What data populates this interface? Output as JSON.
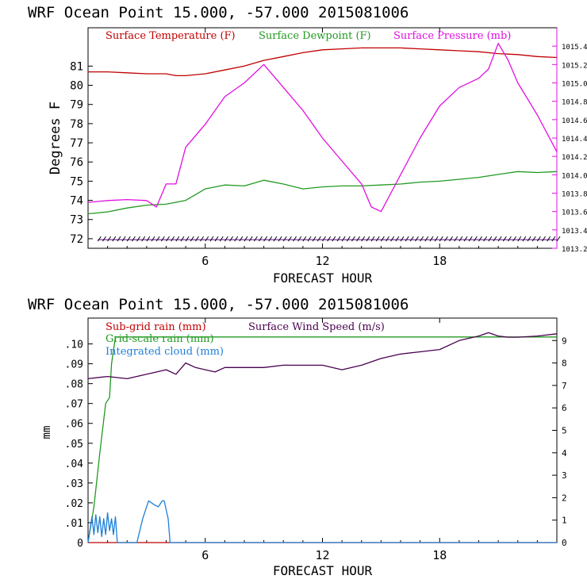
{
  "chart_data": [
    {
      "type": "line",
      "title": "WRF   Ocean Point   15.000, -57.000  2015081006",
      "xlabel": "FORECAST HOUR",
      "ylabel": "Degrees F",
      "xlim": [
        0,
        24
      ],
      "ylim": [
        71.5,
        83.0
      ],
      "y2lim": [
        1013.2,
        1015.6
      ],
      "x_ticks": [
        6,
        12,
        18
      ],
      "x_tick_labels": [
        "6",
        "12",
        "18"
      ],
      "y_ticks": [
        72,
        73,
        74,
        75,
        76,
        77,
        78,
        79,
        80,
        81
      ],
      "y_tick_labels": [
        "72",
        "73",
        "74",
        "75",
        "76",
        "77",
        "78",
        "79",
        "80",
        "81"
      ],
      "y2_ticks": [
        1013.2,
        1013.4,
        1013.6,
        1013.8,
        1014.0,
        1014.2,
        1014.4,
        1014.6,
        1014.8,
        1015.0,
        1015.2,
        1015.4
      ],
      "y2_tick_labels": [
        "1013.2",
        "1013.4",
        "1013.6",
        "1013.8",
        "1014.0",
        "1014.2",
        "1014.4",
        "1014.6",
        "1014.8",
        "1015.0",
        "1015.2",
        "1015.4"
      ],
      "legend_placement": "top-left inside",
      "series": [
        {
          "name": "Surface Temperature (F)",
          "color": "#c00000",
          "axis": "left",
          "x": [
            0,
            1,
            2,
            3,
            4,
            4.5,
            5,
            6,
            7,
            8,
            9,
            10,
            11,
            12,
            13,
            14,
            15,
            16,
            17,
            18,
            19,
            20,
            21,
            22,
            23,
            24
          ],
          "y": [
            80.7,
            80.7,
            80.65,
            80.6,
            80.6,
            80.5,
            80.5,
            80.6,
            80.8,
            81.0,
            81.3,
            81.5,
            81.7,
            81.85,
            81.9,
            81.95,
            81.95,
            81.95,
            81.9,
            81.85,
            81.8,
            81.75,
            81.65,
            81.6,
            81.5,
            81.45
          ]
        },
        {
          "name": "Surface Dewpoint (F)",
          "color": "#229922",
          "axis": "left",
          "x": [
            0,
            1,
            2,
            3,
            4,
            5,
            6,
            7,
            8,
            9,
            10,
            11,
            12,
            13,
            14,
            15,
            16,
            17,
            18,
            19,
            20,
            21,
            22,
            23,
            24
          ],
          "y": [
            73.3,
            73.4,
            73.6,
            73.75,
            73.8,
            74.0,
            74.6,
            74.8,
            74.75,
            75.05,
            74.85,
            74.6,
            74.7,
            74.75,
            74.75,
            74.8,
            74.85,
            74.95,
            75.0,
            75.1,
            75.2,
            75.35,
            75.5,
            75.45,
            75.5
          ]
        },
        {
          "name": "Surface Pressure (mb)",
          "color": "#e010e0",
          "axis": "right",
          "x": [
            0,
            1,
            2,
            3,
            3.5,
            4,
            4.5,
            5,
            6,
            7,
            8,
            9,
            10,
            11,
            12,
            13,
            14,
            14.5,
            15,
            15.5,
            16,
            17,
            18,
            19,
            20,
            20.5,
            21,
            21.5,
            22,
            23,
            24
          ],
          "y": [
            1013.7,
            1013.72,
            1013.73,
            1013.72,
            1013.65,
            1013.9,
            1013.9,
            1014.3,
            1014.55,
            1014.85,
            1015.0,
            1015.2,
            1014.95,
            1014.7,
            1014.4,
            1014.15,
            1013.9,
            1013.65,
            1013.6,
            1013.8,
            1014.0,
            1014.4,
            1014.75,
            1014.95,
            1015.05,
            1015.15,
            1015.43,
            1015.25,
            1015.0,
            1014.65,
            1014.25
          ]
        },
        {
          "name": "",
          "color": "#660099",
          "axis": "left",
          "marker": "wind-barbs",
          "x": [
            0.5,
            24
          ],
          "y": [
            71.95,
            71.95
          ]
        }
      ]
    },
    {
      "type": "line",
      "title": "WRF   Ocean Point   15.000, -57.000  2015081006",
      "xlabel": "FORECAST HOUR",
      "ylabel": "mm",
      "xlim": [
        0,
        24
      ],
      "ylim": [
        0,
        0.113
      ],
      "y2lim": [
        0,
        10
      ],
      "x_ticks": [
        6,
        12,
        18
      ],
      "x_tick_labels": [
        "6",
        "12",
        "18"
      ],
      "y_ticks": [
        0,
        0.01,
        0.02,
        0.03,
        0.04,
        0.05,
        0.06,
        0.07,
        0.08,
        0.09,
        0.1
      ],
      "y_tick_labels": [
        "0",
        ".01",
        ".02",
        ".03",
        ".04",
        ".05",
        ".06",
        ".07",
        ".08",
        ".09",
        ".10"
      ],
      "y2_ticks": [
        0,
        1,
        2,
        3,
        4,
        5,
        6,
        7,
        8,
        9
      ],
      "y2_tick_labels": [
        "0",
        "1",
        "2",
        "3",
        "4",
        "5",
        "6",
        "7",
        "8",
        "9"
      ],
      "legend_placement": "top-left inside",
      "series": [
        {
          "name": "Sub-grid rain (mm)",
          "color": "#c00000",
          "axis": "left",
          "x": [
            0,
            24
          ],
          "y": [
            0,
            0
          ]
        },
        {
          "name": "Grid-scale rain (mm)",
          "color": "#229922",
          "axis": "left",
          "x": [
            0,
            0.3,
            0.6,
            0.9,
            1.1,
            1.2,
            1.4,
            1.6,
            24
          ],
          "y": [
            0,
            0.018,
            0.045,
            0.07,
            0.073,
            0.09,
            0.1035,
            0.1035,
            0.1035
          ]
        },
        {
          "name": "Integrated cloud (mm)",
          "color": "#1e7fd8",
          "axis": "left",
          "x": [
            0,
            0.2,
            0.3,
            0.4,
            0.5,
            0.6,
            0.7,
            0.8,
            0.9,
            1.0,
            1.1,
            1.2,
            1.3,
            1.4,
            1.5,
            2.5,
            2.8,
            3.1,
            3.4,
            3.6,
            3.8,
            3.9,
            4.1,
            4.2,
            24
          ],
          "y": [
            0,
            0.013,
            0.004,
            0.014,
            0.005,
            0.013,
            0.003,
            0.012,
            0.004,
            0.015,
            0.006,
            0.012,
            0.004,
            0.013,
            0,
            0,
            0.012,
            0.021,
            0.019,
            0.018,
            0.021,
            0.021,
            0.012,
            0,
            0
          ]
        },
        {
          "name": "Surface Wind Speed (m/s)",
          "color": "#4a0050",
          "axis": "right",
          "x": [
            0,
            1,
            2,
            3,
            4,
            4.5,
            5,
            5.5,
            6,
            6.5,
            7,
            8,
            9,
            10,
            11,
            12,
            13,
            14,
            15,
            16,
            17,
            18,
            19,
            20,
            20.5,
            21,
            21.5,
            22,
            23,
            24
          ],
          "y": [
            7.3,
            7.4,
            7.3,
            7.5,
            7.7,
            7.5,
            8.0,
            7.8,
            7.7,
            7.6,
            7.8,
            7.8,
            7.8,
            7.9,
            7.9,
            7.9,
            7.7,
            7.9,
            8.2,
            8.4,
            8.5,
            8.6,
            9.0,
            9.2,
            9.35,
            9.2,
            9.15,
            9.15,
            9.2,
            9.3
          ]
        }
      ]
    }
  ]
}
